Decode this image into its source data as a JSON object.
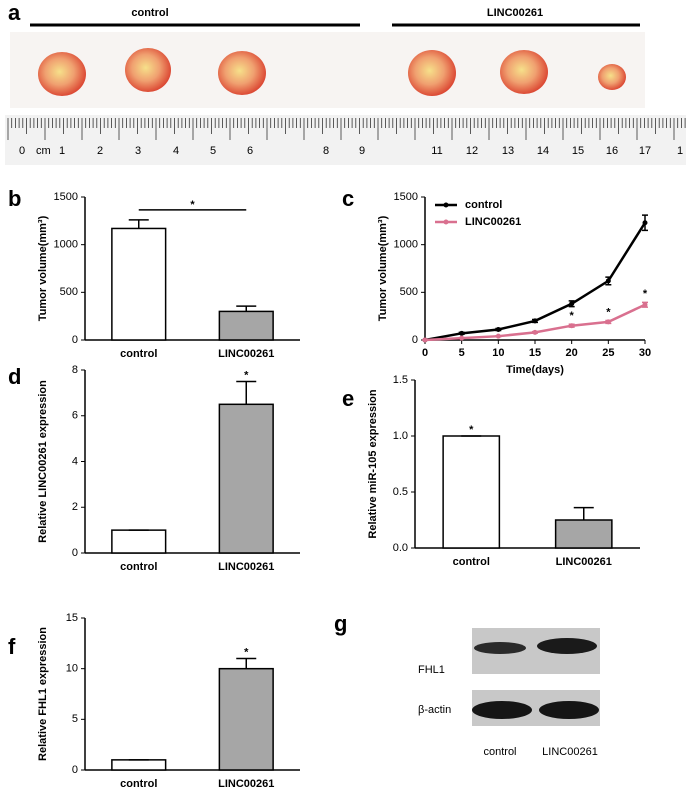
{
  "photo": {
    "panel": "a",
    "groups": [
      "control",
      "LINC00261"
    ],
    "ruler_unit": "cm",
    "ruler_numbers": [
      "0",
      "1",
      "2",
      "3",
      "4",
      "5",
      "6",
      "8",
      "9",
      "11",
      "12",
      "13",
      "14",
      "15",
      "16",
      "17",
      "1"
    ]
  },
  "chart_data": [
    {
      "type": "bar",
      "panel": "b",
      "y_label": "Tumor volume(mm³)",
      "categories": [
        "control",
        "LINC00261"
      ],
      "values": [
        1170,
        300
      ],
      "errors": [
        90,
        55
      ],
      "colors": [
        "#ffffff",
        "#a6a6a6"
      ],
      "ylim": [
        0,
        1500
      ],
      "yticks": [
        0,
        500,
        1000,
        1500
      ],
      "annotation": "*",
      "bracket": true
    },
    {
      "type": "line",
      "panel": "c",
      "x_label": "Time(days)",
      "y_label": "Tumor volume(mm³)",
      "x": [
        0,
        5,
        10,
        15,
        20,
        25,
        30
      ],
      "series": [
        {
          "name": "control",
          "color": "#000000",
          "values": [
            0,
            70,
            110,
            200,
            380,
            620,
            1230
          ],
          "errors": [
            0,
            10,
            10,
            15,
            30,
            40,
            80
          ]
        },
        {
          "name": "LINC00261",
          "color": "#d9708f",
          "values": [
            0,
            20,
            40,
            80,
            150,
            190,
            370
          ],
          "errors": [
            0,
            5,
            5,
            8,
            15,
            15,
            25
          ]
        }
      ],
      "xlim": [
        0,
        30
      ],
      "xticks": [
        0,
        5,
        10,
        15,
        20,
        25,
        30
      ],
      "ylim": [
        0,
        1500
      ],
      "yticks": [
        0,
        500,
        1000,
        1500
      ],
      "legend": "top-left",
      "annotations": [
        {
          "text": "*",
          "x": 20
        },
        {
          "text": "*",
          "x": 25
        },
        {
          "text": "*",
          "x": 30
        }
      ]
    },
    {
      "type": "bar",
      "panel": "d",
      "y_label": "Relative LINC00261 expression",
      "categories": [
        "control",
        "LINC00261"
      ],
      "values": [
        1,
        6.5
      ],
      "errors": [
        0,
        1.0
      ],
      "colors": [
        "#ffffff",
        "#a6a6a6"
      ],
      "ylim": [
        0,
        8
      ],
      "yticks": [
        0,
        2,
        4,
        6,
        8
      ],
      "annotation": "*"
    },
    {
      "type": "bar",
      "panel": "e",
      "y_label": "Relative miR-105 expression",
      "categories": [
        "control",
        "LINC00261"
      ],
      "values": [
        1.0,
        0.25
      ],
      "errors": [
        0,
        0.11
      ],
      "colors": [
        "#ffffff",
        "#a6a6a6"
      ],
      "ylim": [
        0,
        1.5
      ],
      "yticks": [
        {
          "value": 0,
          "label": "0.0"
        },
        0.5,
        {
          "value": 1,
          "label": "1.0"
        },
        1.5
      ],
      "annotation": "*"
    },
    {
      "type": "bar",
      "panel": "f",
      "y_label": "Relative  FHL1 expression",
      "categories": [
        "control",
        "LINC00261"
      ],
      "values": [
        1,
        10
      ],
      "errors": [
        0,
        1
      ],
      "colors": [
        "#ffffff",
        "#a6a6a6"
      ],
      "ylim": [
        0,
        15
      ],
      "yticks": [
        0,
        5,
        10,
        15
      ],
      "annotation": "*"
    }
  ],
  "blot": {
    "panel": "g",
    "bands": [
      "FHL1",
      "β-actin"
    ],
    "lanes": [
      "control",
      "LINC00261"
    ]
  }
}
